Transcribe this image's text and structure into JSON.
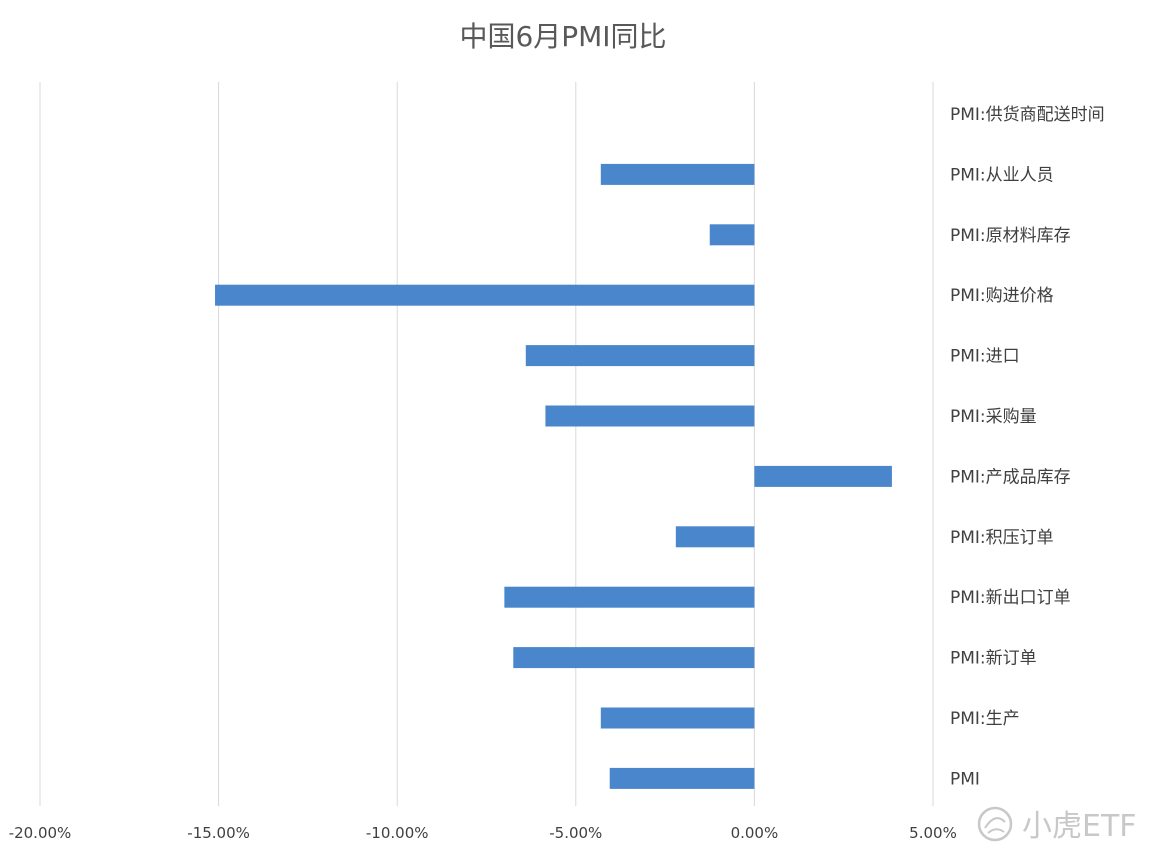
{
  "chart_data": {
    "type": "bar",
    "orientation": "horizontal",
    "title": "中国6月PMI同比",
    "xlabel": "",
    "ylabel": "",
    "xlim": [
      -0.2,
      0.05
    ],
    "x_ticks": [
      "-20.00%",
      "-15.00%",
      "-10.00%",
      "-5.00%",
      "0.00%",
      "5.00%"
    ],
    "x_tick_values": [
      -0.2,
      -0.15,
      -0.1,
      -0.05,
      0.0,
      0.05
    ],
    "grid": true,
    "legend": "none",
    "categories": [
      "PMI:供货商配送时间",
      "PMI:从业人员",
      "PMI:原材料库存",
      "PMI:购进价格",
      "PMI:进口",
      "PMI:采购量",
      "PMI:产成品库存",
      "PMI:积压订单",
      "PMI:新出口订单",
      "PMI:新订单",
      "PMI:生产",
      "PMI"
    ],
    "values": [
      0.0,
      -0.043,
      -0.0125,
      -0.151,
      -0.064,
      -0.0585,
      0.0385,
      -0.022,
      -0.07,
      -0.0675,
      -0.043,
      -0.0405
    ],
    "bar_color": "#4a86cc"
  },
  "watermark": {
    "text": "小虎ETF",
    "icon": "tiger-logo-icon"
  }
}
